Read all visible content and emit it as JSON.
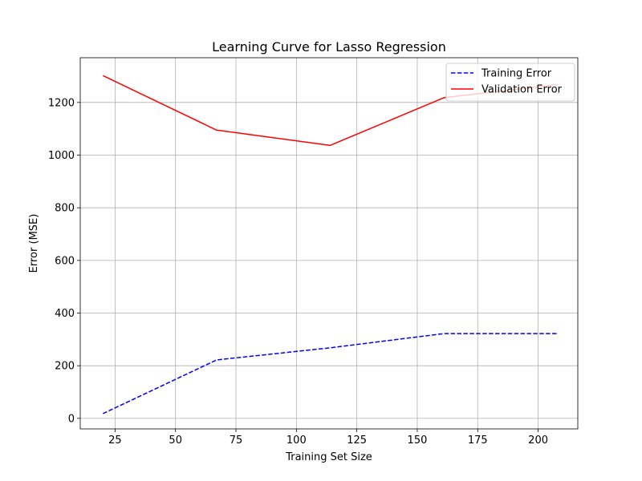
{
  "chart_data": {
    "type": "line",
    "title": "Learning Curve for Lasso Regression",
    "xlabel": "Training Set Size",
    "ylabel": "Error (MSE)",
    "xlim": [
      10.6,
      216.4
    ],
    "ylim": [
      -40,
      1370
    ],
    "xticks": [
      25,
      50,
      75,
      100,
      125,
      150,
      175,
      200
    ],
    "yticks": [
      0,
      200,
      400,
      600,
      800,
      1000,
      1200
    ],
    "grid": true,
    "legend_position": "top-right",
    "x": [
      20,
      67,
      114,
      161,
      208
    ],
    "series": [
      {
        "name": "Training Error",
        "color": "#0000ff",
        "style": "dashed",
        "values": [
          18,
          222,
          268,
          322,
          322
        ]
      },
      {
        "name": "Validation Error",
        "color": "#ff0000",
        "style": "solid",
        "values": [
          1302,
          1095,
          1037,
          1218,
          1268
        ]
      }
    ]
  }
}
